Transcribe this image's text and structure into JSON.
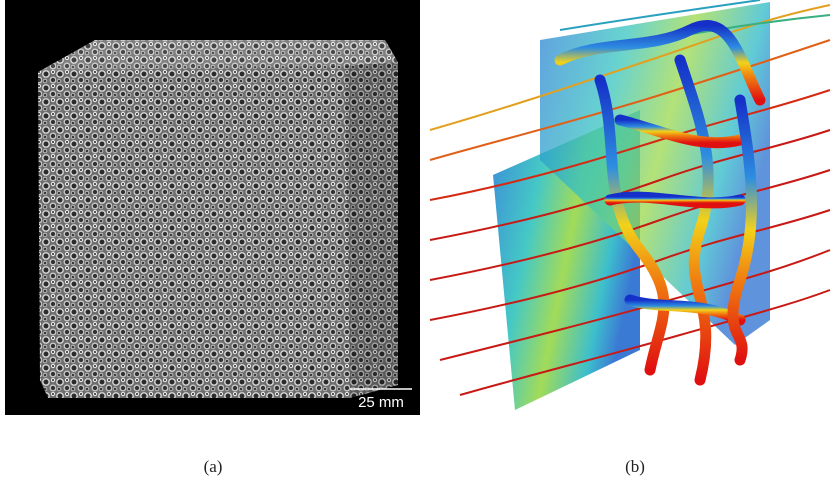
{
  "figure": {
    "panels": [
      {
        "scale_bar": "25 mm",
        "caption": "(a)"
      },
      {
        "caption": "(b)"
      }
    ]
  }
}
